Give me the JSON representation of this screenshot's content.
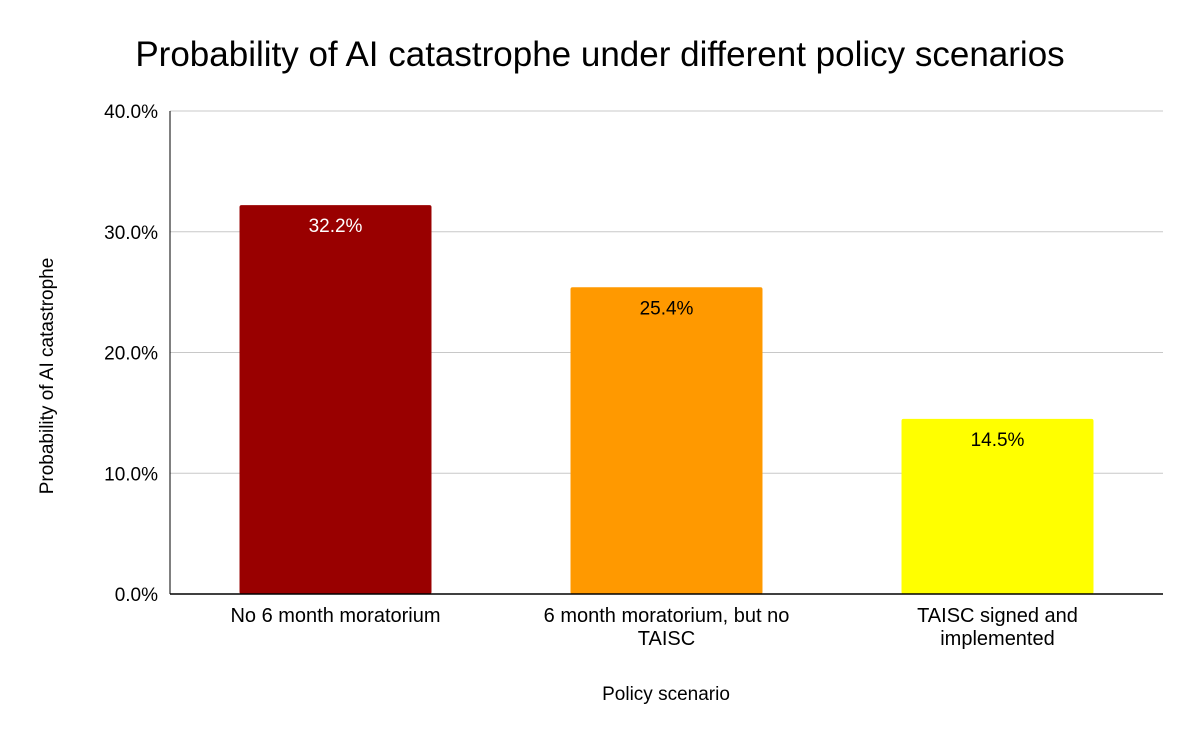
{
  "chart_data": {
    "type": "bar",
    "title": "Probability of AI catastrophe under different policy scenarios",
    "xlabel": "Policy scenario",
    "ylabel": "Probability of AI catastrophe",
    "categories": [
      [
        "No 6 month moratorium"
      ],
      [
        "6 month moratorium, but no",
        "TAISC"
      ],
      [
        "TAISC signed and",
        "implemented"
      ]
    ],
    "values": [
      32.2,
      25.4,
      14.5
    ],
    "data_labels": [
      "32.2%",
      "25.4%",
      "14.5%"
    ],
    "bar_colors": [
      "#990000",
      "#ff9900",
      "#ffff00"
    ],
    "label_colors": [
      "#ffffff",
      "#000000",
      "#000000"
    ],
    "ylim": [
      0,
      40
    ],
    "y_ticks": [
      {
        "value": 0,
        "label": "0.0%"
      },
      {
        "value": 10,
        "label": "10.0%"
      },
      {
        "value": 20,
        "label": "20.0%"
      },
      {
        "value": 30,
        "label": "30.0%"
      },
      {
        "value": 40,
        "label": "40.0%"
      }
    ],
    "grid": true,
    "legend": "none"
  }
}
